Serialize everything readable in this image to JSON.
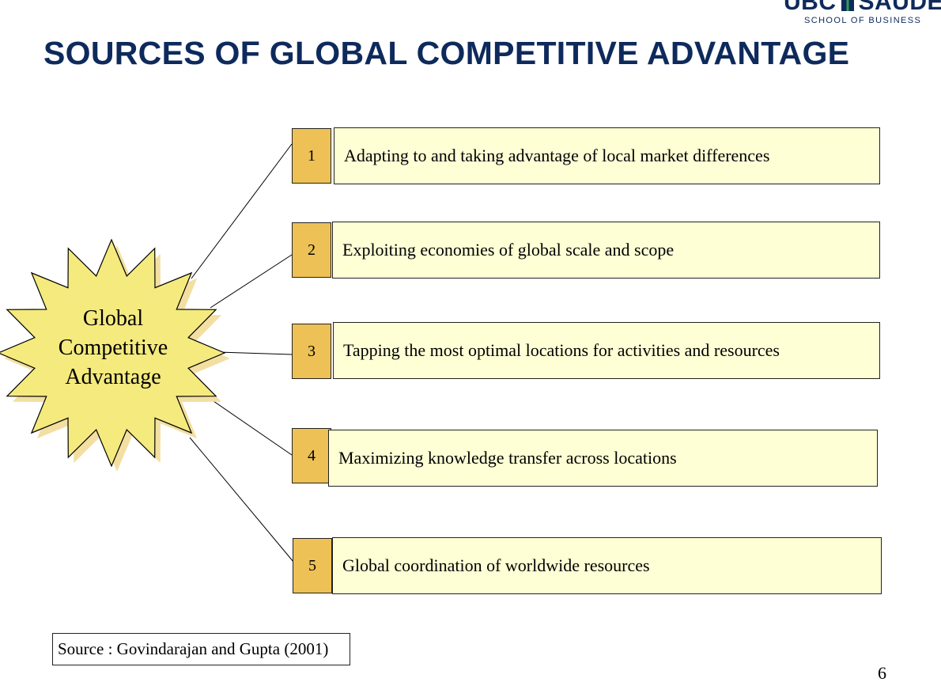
{
  "logo": {
    "left_text": "UBC",
    "right_text": "SAUDER",
    "subtitle": "SCHOOL OF BUSINESS"
  },
  "title": "SOURCES OF GLOBAL COMPETITIVE ADVANTAGE",
  "center": {
    "lines": [
      "Global",
      "Competitive",
      "Advantage"
    ]
  },
  "items": [
    {
      "number": "1",
      "label": "Adapting to and taking advantage of local market differences"
    },
    {
      "number": "2",
      "label": "Exploiting economies of global scale and scope"
    },
    {
      "number": "3",
      "label": "Tapping the most optimal locations for activities and resources"
    },
    {
      "number": "4",
      "label": "Maximizing knowledge transfer across locations"
    },
    {
      "number": "5",
      "label": "Global coordination of worldwide resources"
    }
  ],
  "source": "Source : Govindarajan and Gupta (2001)",
  "page_number": "6",
  "colors": {
    "title": "#0e2a5c",
    "star_fill": "#f4ea7e",
    "star_shadow": "#f3dfa2",
    "number_fill": "#edc155",
    "label_fill": "#ffffd5"
  }
}
